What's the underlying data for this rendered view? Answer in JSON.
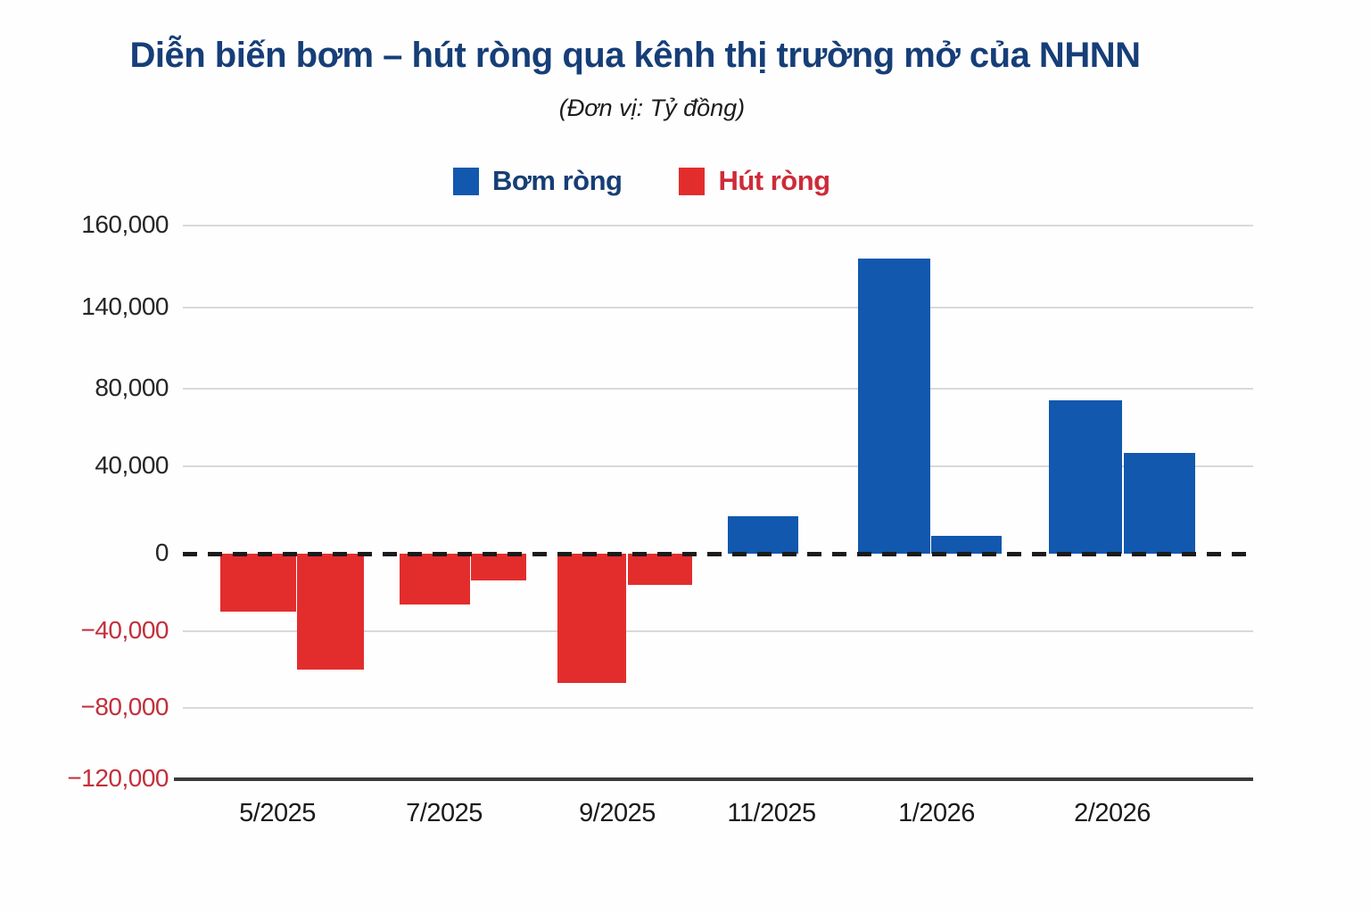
{
  "chart_data": {
    "type": "bar",
    "title": "Diễn biến bơm – hút ròng qua kênh thị trường mở của NHNN",
    "subtitle": "(Đơn vị: Tỷ đồng)",
    "unit": "Tỷ đồng",
    "source": "NHNN",
    "legend_position": "top",
    "grid": true,
    "zero_line_style": "dashed",
    "legend": [
      {
        "label": "Bơm ròng",
        "color": "#1158AE",
        "text_color": "#173E74"
      },
      {
        "label": "Hút ròng",
        "color": "#E32D2D",
        "text_color": "#CE2B38"
      }
    ],
    "y_axis": {
      "positive_label_color": "#262626",
      "negative_label_color": "#C22F3B",
      "ticks": [
        {
          "value": 160000,
          "label": "160,000"
        },
        {
          "value": 140000,
          "label": "140,000"
        },
        {
          "value": 80000,
          "label": "80,000"
        },
        {
          "value": 40000,
          "label": "40,000"
        },
        {
          "value": 0,
          "label": "0"
        },
        {
          "value": -40000,
          "label": "−40,000"
        },
        {
          "value": -80000,
          "label": "−80,000"
        },
        {
          "value": -120000,
          "label": "−120,000"
        }
      ]
    },
    "x_labels": [
      "5/2025",
      "7/2025",
      "9/2025",
      "11/2025",
      "1/2026",
      "2/2026"
    ],
    "bars": [
      {
        "group": "5/2025",
        "series": "Hút ròng",
        "value": -30000
      },
      {
        "group": "5/2025",
        "series": "Hút ròng",
        "value": -60000
      },
      {
        "group": "7/2025",
        "series": "Hút ròng",
        "value": -26000
      },
      {
        "group": "7/2025",
        "series": "Hút ròng",
        "value": -14000
      },
      {
        "group": "9/2025",
        "series": "Hút ròng",
        "value": -67000
      },
      {
        "group": "9/2025",
        "series": "Hút ròng",
        "value": -16000
      },
      {
        "group": "11/2025",
        "series": "Bơm ròng",
        "value": 17000
      },
      {
        "group": "1/2026",
        "series": "Bơm ròng",
        "value": 152000
      },
      {
        "group": "1/2026",
        "series": "Bơm ròng",
        "value": 8000
      },
      {
        "group": "2/2026",
        "series": "Bơm ròng",
        "value": 74000
      },
      {
        "group": "2/2026",
        "series": "Bơm ròng",
        "value": 47000
      }
    ]
  }
}
